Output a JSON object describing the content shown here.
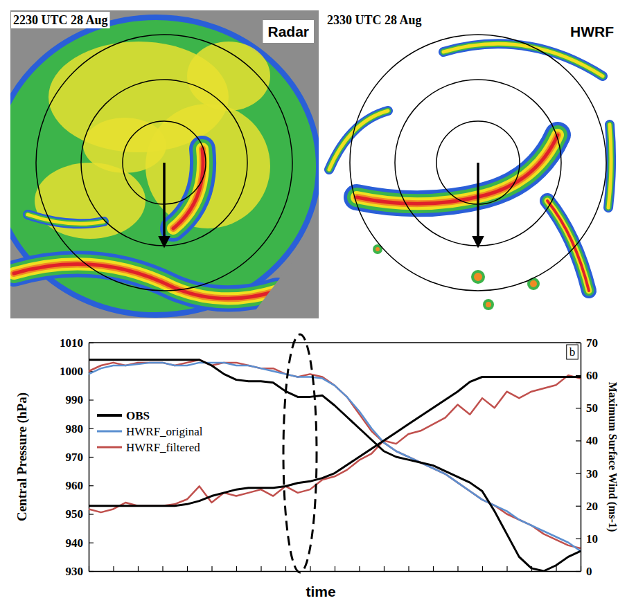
{
  "panels": [
    {
      "time": "2230 UTC 28 Aug",
      "label": "Radar"
    },
    {
      "time": "2330 UTC 28 Aug",
      "label": "HWRF"
    }
  ],
  "chart_data": {
    "type": "line",
    "panel_label": "b",
    "x_label": "time",
    "y_label": "Central Pressure (hPa)",
    "y2_label": "Maximum Surface Wind (ms-1)",
    "x": [
      0,
      0.5,
      1,
      1.5,
      2,
      2.5,
      3,
      3.5,
      4,
      4.5,
      5,
      5.5,
      6,
      6.5,
      7,
      7.5,
      8,
      8.5,
      9,
      9.5,
      10,
      10.5,
      11,
      11.5,
      12,
      12.5,
      13,
      13.5,
      14,
      14.5,
      15,
      15.5,
      16,
      16.5,
      17,
      17.5,
      18,
      18.5,
      19,
      19.5,
      20
    ],
    "xlim": [
      0,
      20
    ],
    "xticks": [
      0,
      1,
      2,
      3,
      4,
      5,
      6,
      7,
      8,
      9,
      10,
      11,
      12,
      13,
      14,
      15,
      16,
      17,
      18,
      19,
      20
    ],
    "ylim": [
      930,
      1010
    ],
    "yticks": [
      930,
      940,
      950,
      960,
      970,
      980,
      990,
      1000,
      1010
    ],
    "y2lim": [
      0,
      70
    ],
    "y2ticks": [
      0,
      10,
      20,
      30,
      40,
      50,
      60,
      70
    ],
    "tick_labels": "y",
    "legend": "left",
    "series": [
      {
        "name": "OBS",
        "color": "#000000",
        "axis": "y",
        "values": [
          1004,
          1004,
          1004,
          1004,
          1004,
          1004,
          1004,
          1004,
          1004,
          1004,
          1002,
          999,
          997,
          996.5,
          996.5,
          996,
          993,
          991,
          991,
          991.5,
          988,
          984,
          980,
          976,
          972,
          970,
          969,
          968,
          967,
          965,
          963,
          961,
          958,
          951,
          943,
          935,
          931,
          930,
          932,
          935,
          937
        ]
      },
      {
        "name": "OBS",
        "color": "#000000",
        "axis": "y2",
        "values": [
          20,
          20,
          20,
          20,
          20,
          20,
          20,
          20,
          20.5,
          21.5,
          23,
          24,
          25,
          25.5,
          25.5,
          25.5,
          26,
          27,
          27.5,
          28.5,
          30,
          32.5,
          35,
          37.5,
          40,
          42.5,
          45,
          47.5,
          50,
          52.5,
          55,
          58,
          59.5,
          59.5,
          59.5,
          59.5,
          59.5,
          59.5,
          59.5,
          59.5,
          59.5
        ]
      },
      {
        "name": "HWRF_original",
        "color": "#5b8fd0",
        "axis": "y",
        "values": [
          999,
          1001,
          1002,
          1002,
          1002.5,
          1003,
          1003,
          1002,
          1002,
          1003,
          1003,
          1003,
          1002,
          1002,
          1001,
          1000,
          999,
          998,
          998,
          997.5,
          995,
          991,
          986,
          980,
          975,
          972,
          970,
          968,
          966,
          964,
          961,
          958,
          955,
          953,
          951,
          948,
          946,
          944,
          942,
          940,
          937
        ]
      },
      {
        "name": "HWRF_filtered",
        "color": "#c0504d",
        "axis": "y",
        "values": [
          1000,
          1002,
          1003,
          1002,
          1003,
          1003,
          1003,
          1002,
          1003,
          1004,
          1002,
          1003,
          1003,
          1002,
          1001,
          1001,
          999,
          998,
          999,
          998,
          995,
          991,
          985,
          979,
          975,
          972,
          970,
          968,
          966,
          964,
          961,
          958,
          955,
          953,
          950,
          948,
          946,
          943,
          941,
          939,
          938
        ]
      },
      {
        "name": "HWRF_filtered",
        "color": "#c0504d",
        "axis": "y2",
        "values": [
          19,
          18,
          19,
          21,
          20,
          20,
          20,
          20.5,
          22,
          26,
          21,
          24,
          23,
          24,
          25,
          23,
          26,
          24,
          25,
          28,
          29,
          31,
          34,
          36,
          40,
          39,
          42,
          43,
          45,
          47,
          51,
          48,
          53,
          50,
          55,
          53,
          55,
          56,
          57,
          60,
          59
        ]
      }
    ]
  }
}
